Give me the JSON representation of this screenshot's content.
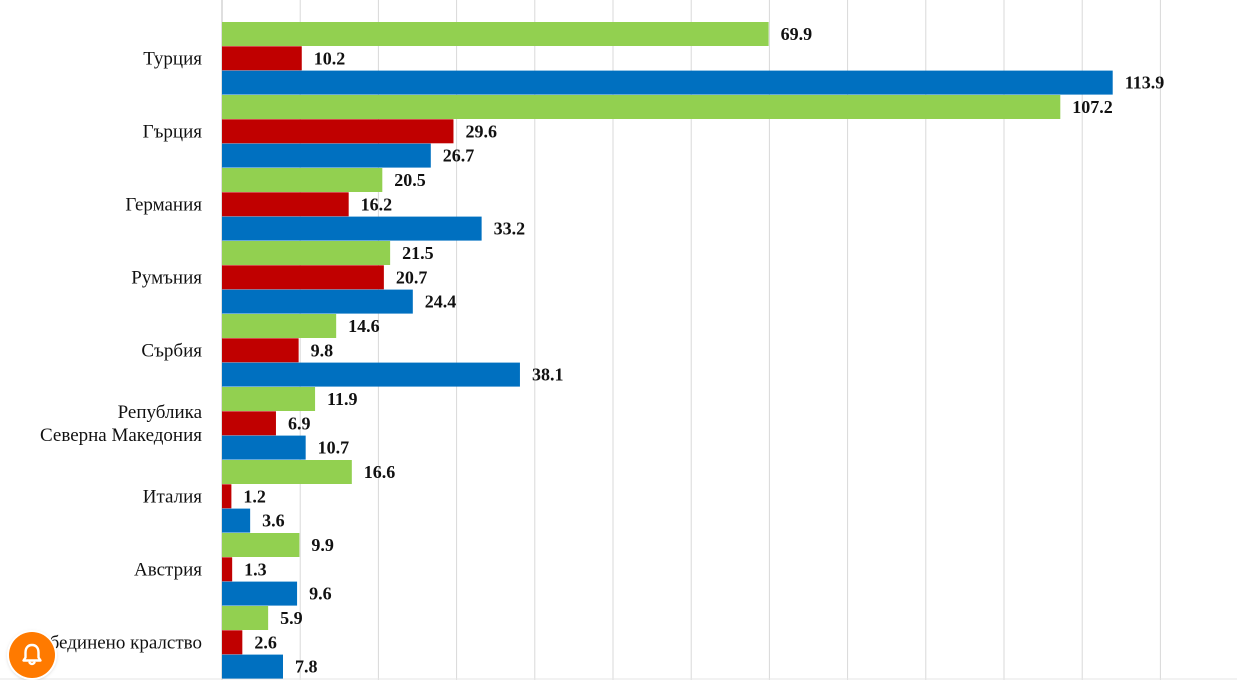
{
  "chart_data": {
    "type": "bar",
    "orientation": "horizontal",
    "categories": [
      [
        "Турция"
      ],
      [
        "Гърция"
      ],
      [
        "Германия"
      ],
      [
        "Румъния"
      ],
      [
        "Сърбия"
      ],
      [
        "Република",
        "Северна Македония"
      ],
      [
        "Италия"
      ],
      [
        "Австрия"
      ],
      [
        "Обединено кралство"
      ]
    ],
    "series": [
      {
        "name": "green",
        "color": "#92d050",
        "values": [
          69.9,
          107.2,
          20.5,
          21.5,
          14.6,
          11.9,
          16.6,
          9.9,
          5.9
        ]
      },
      {
        "name": "red",
        "color": "#c00000",
        "values": [
          10.2,
          29.6,
          16.2,
          20.7,
          9.8,
          6.9,
          1.2,
          1.3,
          2.6
        ]
      },
      {
        "name": "blue",
        "color": "#0070c0",
        "values": [
          113.9,
          26.7,
          33.2,
          24.4,
          38.1,
          10.7,
          3.6,
          9.6,
          7.8
        ]
      }
    ],
    "xlim": [
      0,
      130
    ],
    "grid": true,
    "gridlines_every": 10
  },
  "overlay": {
    "notification_icon": "bell-icon",
    "color": "#ff7a00"
  }
}
